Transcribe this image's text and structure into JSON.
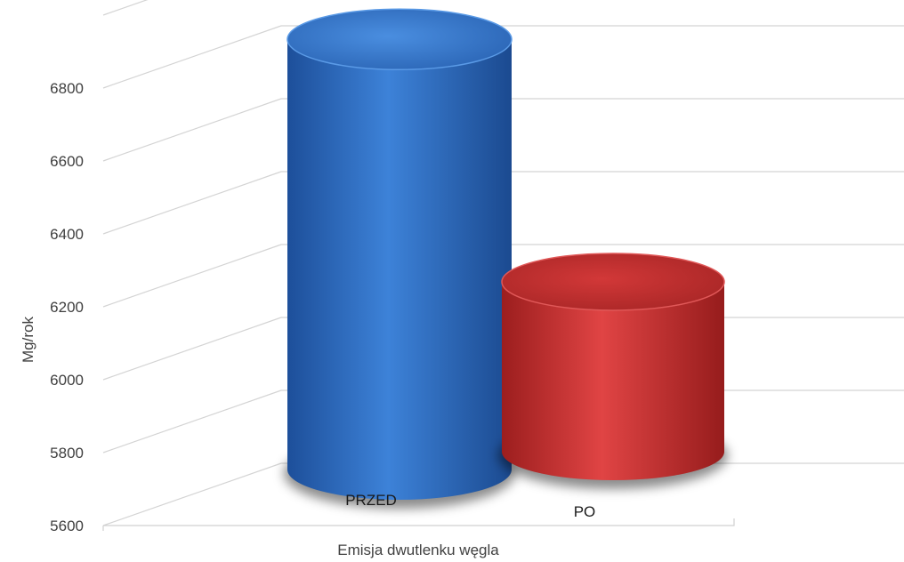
{
  "chart_data": {
    "type": "bar",
    "style": "3d-cylinder",
    "categories": [
      "PRZED",
      "PO"
    ],
    "values": [
      6860,
      6195
    ],
    "colors": [
      "#2f6fc4",
      "#c83232"
    ],
    "title": "",
    "xlabel": "Emisja dwutlenku węgla",
    "ylabel": "Mg/rok",
    "ylim": [
      5600,
      7000
    ],
    "yticks": [
      "5600",
      "5800",
      "6000",
      "6200",
      "6400",
      "6600",
      "6800"
    ],
    "grid": true,
    "legend": "none"
  }
}
